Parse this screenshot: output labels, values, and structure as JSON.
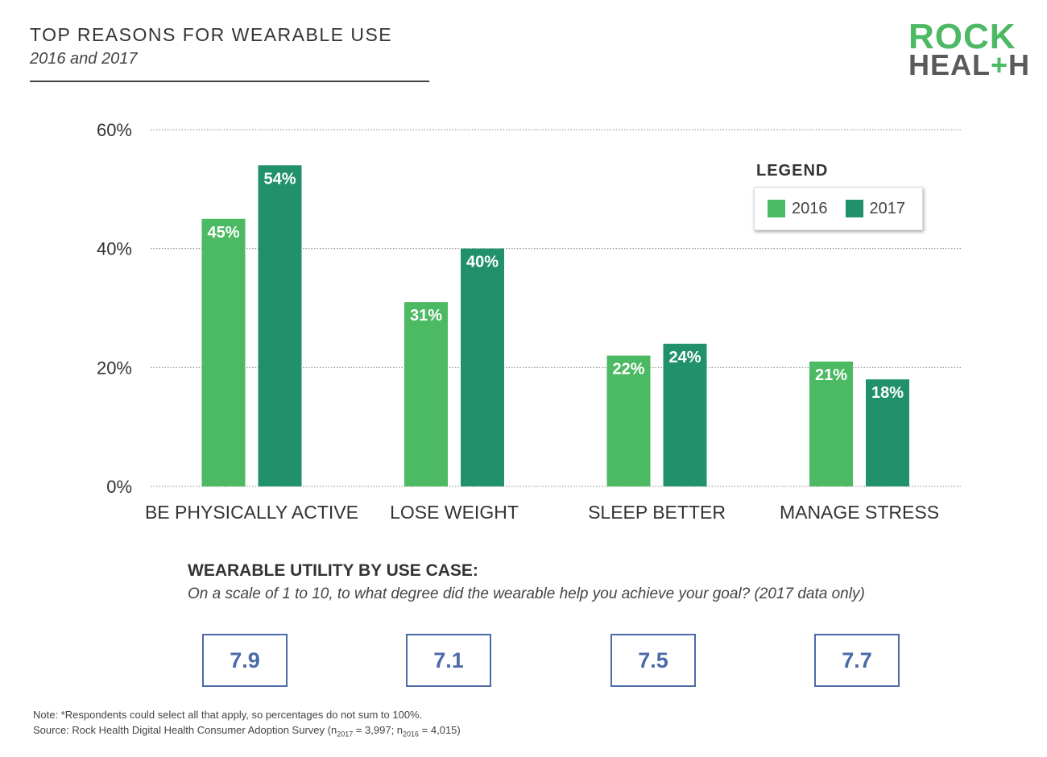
{
  "header": {
    "title": "TOP REASONS FOR WEARABLE USE",
    "subtitle": "2016 and 2017"
  },
  "logo": {
    "line1": "ROCK",
    "line2_a": "HEAL",
    "line2_plus": "+",
    "line2_b": "H"
  },
  "chart_data": {
    "type": "bar",
    "title": "TOP REASONS FOR WEARABLE USE",
    "subtitle": "2016 and 2017",
    "categories": [
      "BE PHYSICALLY ACTIVE",
      "LOSE WEIGHT",
      "SLEEP BETTER",
      "MANAGE STRESS"
    ],
    "series": [
      {
        "name": "2016",
        "values": [
          45,
          31,
          22,
          21
        ],
        "color": "#4cb963"
      },
      {
        "name": "2017",
        "values": [
          54,
          40,
          24,
          18
        ],
        "color": "#21916b"
      }
    ],
    "ylim": [
      0,
      60
    ],
    "yticks": [
      0,
      20,
      40,
      60
    ],
    "ytick_labels": [
      "0%",
      "20%",
      "40%",
      "60%"
    ],
    "grid": true,
    "legend_title": "LEGEND",
    "legend_position": "top-right",
    "data_label_suffix": "%"
  },
  "utility": {
    "title": "WEARABLE UTILITY BY USE CASE:",
    "subtitle": "On a scale of 1 to 10, to what degree did the wearable help you achieve your goal? (2017 data only)",
    "scores": [
      "7.9",
      "7.1",
      "7.5",
      "7.7"
    ]
  },
  "footer": {
    "note": "Note: *Respondents could select all that apply, so percentages do not sum to 100%.",
    "source_prefix": "Source: Rock Health Digital Health Consumer Adoption Survey (n",
    "sub2017": "2017",
    "mid": " = 3,997; n",
    "sub2016": "2016",
    "suffix": " = 4,015)"
  }
}
